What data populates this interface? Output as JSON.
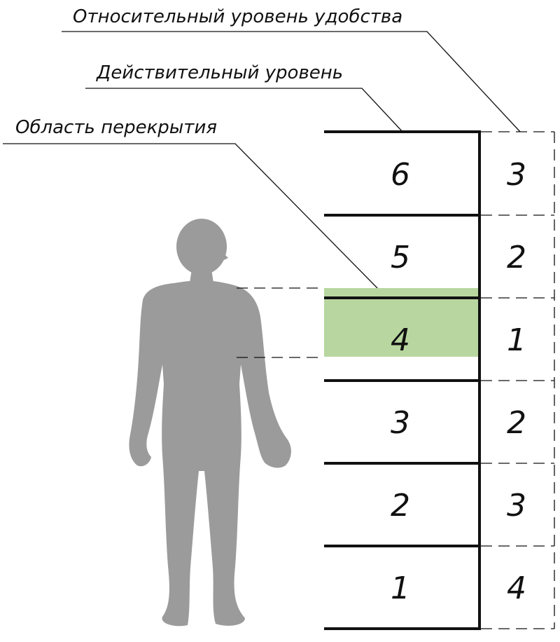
{
  "labels": {
    "relative_comfort": "Относительный уровень удобства",
    "actual_level": "Действительный уровень",
    "overlap_area": "Область перекрытия"
  },
  "actual_levels": [
    "6",
    "5",
    "4",
    "3",
    "2",
    "1"
  ],
  "relative_levels": [
    "3",
    "2",
    "1",
    "2",
    "3",
    "4"
  ],
  "colors": {
    "overlap": "#b8d7a0",
    "figure": "#9b9b9b",
    "lines": "#111111"
  },
  "figure": {
    "icon": "human-silhouette-icon"
  }
}
